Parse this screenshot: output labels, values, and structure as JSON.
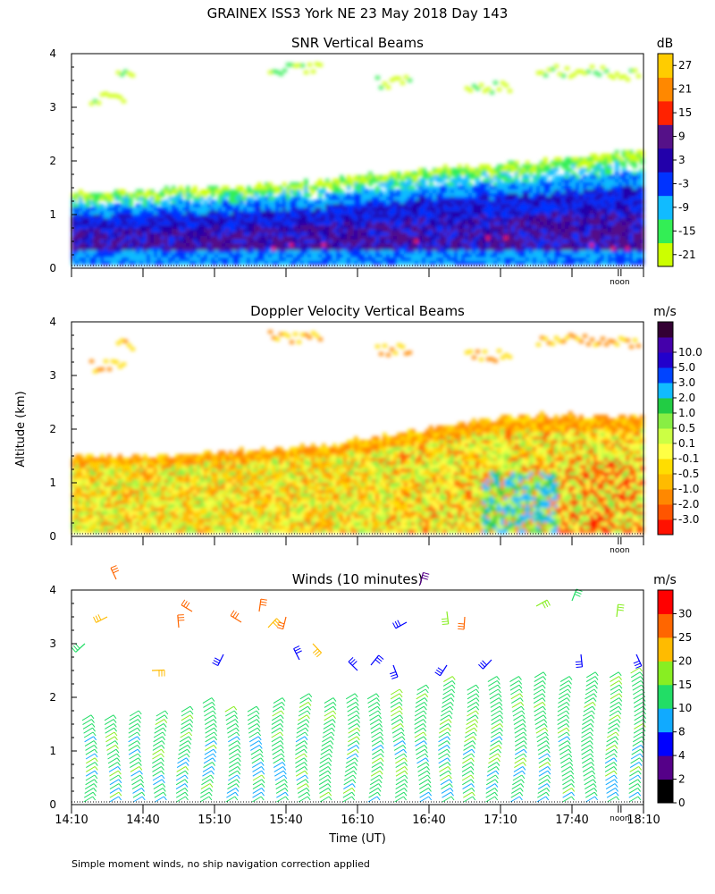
{
  "main_title": "GRAINEX ISS3 York NE  23 May 2018 Day 143",
  "y_axis_label": "Altitude (km)",
  "x_axis_label": "Time (UT)",
  "footnote": "Simple moment winds, no ship navigation correction applied",
  "noon_label": "noon",
  "chart_data": [
    {
      "type": "heatmap",
      "title": "SNR Vertical Beams",
      "ylabel": "Altitude (km)",
      "ylim": [
        0,
        4
      ],
      "yticks": [
        "0",
        "1",
        "2",
        "3",
        "4"
      ],
      "xlim": [
        "14:10",
        "18:10"
      ],
      "colorbar": {
        "unit": "dB",
        "colors": [
          "#ccff00",
          "#33ee55",
          "#11bbff",
          "#0033ff",
          "#2200aa",
          "#551188",
          "#ff2200",
          "#ff8800",
          "#ffcc00"
        ],
        "tick_labels": [
          "-21",
          "-15",
          "-9",
          "-3",
          "3",
          "9",
          "15",
          "21",
          "27"
        ]
      },
      "cloud_top_km": [
        1.4,
        1.4,
        1.45,
        1.5,
        1.55,
        1.6,
        1.7,
        1.8,
        1.9,
        1.9,
        2.0,
        2.1,
        2.2
      ]
    },
    {
      "type": "heatmap",
      "title": "Doppler Velocity Vertical Beams",
      "ylabel": "Altitude (km)",
      "ylim": [
        0,
        4
      ],
      "yticks": [
        "0",
        "1",
        "2",
        "3",
        "4"
      ],
      "xlim": [
        "14:10",
        "18:10"
      ],
      "colorbar": {
        "unit": "m/s",
        "colors": [
          "#ff1100",
          "#ff5500",
          "#ff8800",
          "#ffbb00",
          "#ffdd00",
          "#ffff44",
          "#ccff44",
          "#88ee44",
          "#22cc44",
          "#11bbff",
          "#0044ff",
          "#2200cc",
          "#4400aa",
          "#330033"
        ],
        "tick_labels": [
          "-3.0",
          "-2.0",
          "-1.0",
          "-0.5",
          "-0.1",
          "0.1",
          "0.5",
          "1.0",
          "2.0",
          "3.0",
          "5.0",
          "10.0"
        ]
      },
      "cloud_top_km": [
        1.5,
        1.5,
        1.5,
        1.55,
        1.6,
        1.7,
        1.8,
        1.95,
        2.1,
        2.2,
        2.25,
        2.25,
        2.2
      ]
    },
    {
      "type": "scatter",
      "title": "Winds (10 minutes)",
      "ylabel": "Altitude (km)",
      "xlabel": "Time (UT)",
      "ylim": [
        0,
        4
      ],
      "yticks": [
        "0",
        "1",
        "2",
        "3",
        "4"
      ],
      "categories": [
        "14:10",
        "14:40",
        "15:10",
        "15:40",
        "16:10",
        "16:40",
        "17:10",
        "17:40",
        "18:10"
      ],
      "xtick_values_min": [
        0,
        30,
        60,
        90,
        120,
        150,
        180,
        210,
        240
      ],
      "noon_min": 230,
      "profile_times_min": [
        5,
        15,
        25,
        35,
        45,
        55,
        65,
        75,
        85,
        95,
        105,
        115,
        125,
        135,
        145,
        155,
        165,
        175,
        185,
        195,
        205,
        215,
        225,
        235
      ],
      "profile_top_km": [
        1.6,
        1.6,
        1.7,
        1.7,
        1.8,
        1.9,
        1.8,
        1.8,
        1.9,
        2.0,
        1.9,
        2.0,
        2.0,
        2.1,
        2.2,
        2.3,
        2.2,
        2.3,
        2.3,
        2.4,
        2.3,
        2.4,
        2.4,
        2.5
      ],
      "colorbar": {
        "unit": "m/s",
        "colors": [
          "#000000",
          "#550088",
          "#0000ff",
          "#11aaff",
          "#22dd66",
          "#88ee22",
          "#ffbb00",
          "#ff6600",
          "#ff0000"
        ],
        "tick_labels": [
          "0",
          "2",
          "4",
          "8",
          "10",
          "15",
          "20",
          "25",
          "30"
        ]
      }
    }
  ]
}
